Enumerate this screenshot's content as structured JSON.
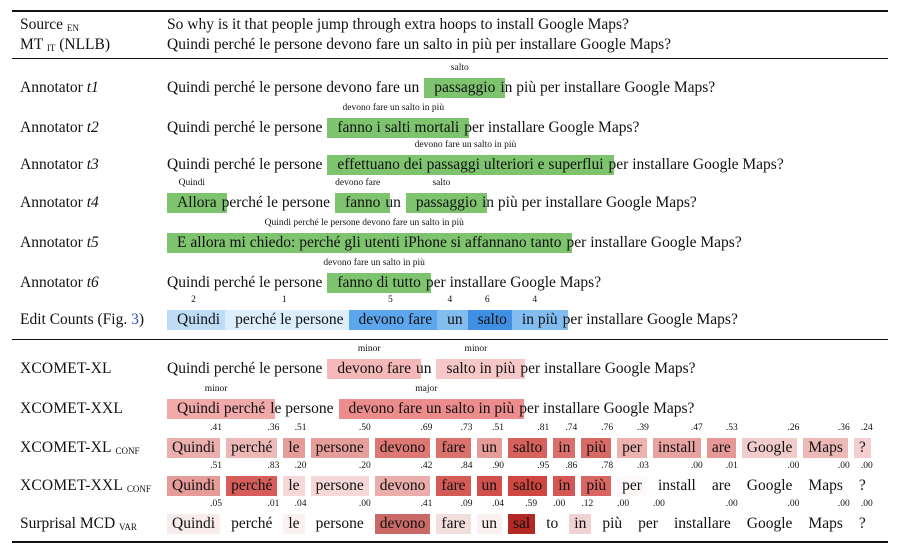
{
  "header": {
    "source_label": "Source",
    "source_sub": "EN",
    "source_text": "So why is it that people jump through extra hoops to install Google Maps?",
    "mt_label": "MT",
    "mt_sub": "IT",
    "mt_suffix": "(NLLB)",
    "mt_text": "Quindi perché le persone devono fare un salto in più per installare Google Maps?"
  },
  "annotators": [
    {
      "label": "Annotator ",
      "id": "t1",
      "segments": [
        {
          "text": "Quindi perché le persone devono fare un",
          "hl": false
        },
        {
          "text": "passaggio",
          "hl": true,
          "note": "salto"
        },
        {
          "text": "in più per installare Google Maps?",
          "hl": false
        }
      ]
    },
    {
      "label": "Annotator ",
      "id": "t2",
      "segments": [
        {
          "text": "Quindi perché le persone",
          "hl": false
        },
        {
          "text": "fanno i salti mortali",
          "hl": true,
          "note": "devono fare un salto in più"
        },
        {
          "text": "per installare Google Maps?",
          "hl": false
        }
      ]
    },
    {
      "label": "Annotator ",
      "id": "t3",
      "segments": [
        {
          "text": "Quindi perché le persone",
          "hl": false
        },
        {
          "text": "effettuano dei passaggi ulteriori e superflui",
          "hl": true,
          "note": "devono fare un salto in più"
        },
        {
          "text": "per installare Google Maps?",
          "hl": false
        }
      ]
    },
    {
      "label": "Annotator ",
      "id": "t4",
      "segments": [
        {
          "text": "Allora",
          "hl": true,
          "note": "Quindi"
        },
        {
          "text": "perché le persone",
          "hl": false
        },
        {
          "text": "fanno",
          "hl": true,
          "note": "devono fare"
        },
        {
          "text": "un",
          "hl": false
        },
        {
          "text": "passaggio",
          "hl": true,
          "note": "salto"
        },
        {
          "text": "in più per installare Google Maps?",
          "hl": false
        }
      ]
    },
    {
      "label": "Annotator ",
      "id": "t5",
      "segments": [
        {
          "text": "E allora mi chiedo: perché gli utenti iPhone si affannano tanto",
          "hl": true,
          "note": "Quindi perché le persone devono fare un salto in più"
        },
        {
          "text": "per installare Google Maps?",
          "hl": false
        }
      ]
    },
    {
      "label": "Annotator ",
      "id": "t6",
      "segments": [
        {
          "text": "Quindi perché le persone",
          "hl": false
        },
        {
          "text": "fanno di tutto",
          "hl": true,
          "note": "devono fare un salto in più"
        },
        {
          "text": "per installare Google Maps?",
          "hl": false
        }
      ]
    }
  ],
  "edit_counts": {
    "label": "Edit Counts (Fig. ",
    "ref": "3",
    "label_end": ")",
    "ref_color": "#2b4fd6",
    "segments": [
      {
        "text": "Quindi",
        "count": "2",
        "color": "#bfdcf7"
      },
      {
        "text": "perché le persone",
        "count": "1",
        "color": "#dcedfb"
      },
      {
        "text": "devono fare",
        "count": "5",
        "color": "#5ba6ec"
      },
      {
        "text": "un",
        "count": "4",
        "color": "#83bdf0"
      },
      {
        "text": "salto",
        "count": "6",
        "color": "#3f8fe2"
      },
      {
        "text": "in più",
        "count": "4",
        "color": "#83bdf0"
      }
    ],
    "tail": "per installare Google Maps?"
  },
  "metrics": [
    {
      "label": "XCOMET-XL",
      "sub": "",
      "segments": [
        {
          "text": "Quindi perché le persone",
          "hl": false
        },
        {
          "text": "devono fare",
          "hl": true,
          "note": "minor",
          "color": "#f4b8b8"
        },
        {
          "text": "un",
          "hl": false
        },
        {
          "text": "salto in più",
          "hl": true,
          "note": "minor",
          "color": "#f7c8c8"
        },
        {
          "text": "per installare Google Maps?",
          "hl": false
        }
      ]
    },
    {
      "label": "XCOMET-XXL",
      "sub": "",
      "segments": [
        {
          "text": "Quindi perché",
          "hl": true,
          "note": "minor",
          "color": "#f2a9a9"
        },
        {
          "text": "le persone",
          "hl": false
        },
        {
          "text": "devono fare un salto in più",
          "hl": true,
          "note": "major",
          "color": "#ec8c8c"
        },
        {
          "text": "per installare Google Maps?",
          "hl": false
        }
      ]
    }
  ],
  "token_rows": [
    {
      "label": "XCOMET-XL",
      "sub": "CONF",
      "tokens": [
        "Quindi",
        "perché",
        "le",
        "persone",
        "devono",
        "fare",
        "un",
        "salto",
        "in",
        "più",
        "per",
        "install",
        "are",
        "Google",
        "Maps",
        "?"
      ],
      "values": [
        ".41",
        ".36",
        ".51",
        ".50",
        ".69",
        ".73",
        ".51",
        ".81",
        ".74",
        ".76",
        ".39",
        ".47",
        ".53",
        ".26",
        ".36",
        ".24"
      ],
      "levels": [
        0.41,
        0.36,
        0.51,
        0.5,
        0.69,
        0.73,
        0.51,
        0.81,
        0.74,
        0.76,
        0.39,
        0.47,
        0.53,
        0.26,
        0.36,
        0.24
      ]
    },
    {
      "label": "XCOMET-XXL",
      "sub": "CONF",
      "tokens": [
        "Quindi",
        "perché",
        "le",
        "persone",
        "devono",
        "fare",
        "un",
        "salto",
        "in",
        "più",
        "per",
        "install",
        "are",
        "Google",
        "Maps",
        "?"
      ],
      "values": [
        ".51",
        ".83",
        ".20",
        ".20",
        ".42",
        ".84",
        ".90",
        ".95",
        ".86",
        ".78",
        ".03",
        ".00",
        ".01",
        ".00",
        ".00",
        ".00"
      ],
      "levels": [
        0.51,
        0.83,
        0.2,
        0.2,
        0.42,
        0.84,
        0.9,
        0.95,
        0.86,
        0.78,
        0.03,
        0.0,
        0.01,
        0.0,
        0.0,
        0.0
      ]
    },
    {
      "label": "Surprisal MCD",
      "sub": "VAR",
      "tokens": [
        "Quindi",
        "perché",
        "le",
        "persone",
        "devono",
        "fare",
        "un",
        "sal",
        "to",
        "in",
        "più",
        "per",
        "installare",
        "Google",
        "Maps",
        "?"
      ],
      "values": [
        ".05",
        ".01",
        ".04",
        ".00",
        ".41",
        ".09",
        ".04",
        ".59",
        ".00",
        ".12",
        ".00",
        ".00",
        ".00",
        ".00",
        ".00",
        ".00"
      ],
      "levels": [
        0.05,
        0.01,
        0.04,
        0.0,
        0.41,
        0.09,
        0.04,
        0.59,
        0.0,
        0.12,
        0.0,
        0.0,
        0.0,
        0.0,
        0.0,
        0.0
      ]
    }
  ]
}
